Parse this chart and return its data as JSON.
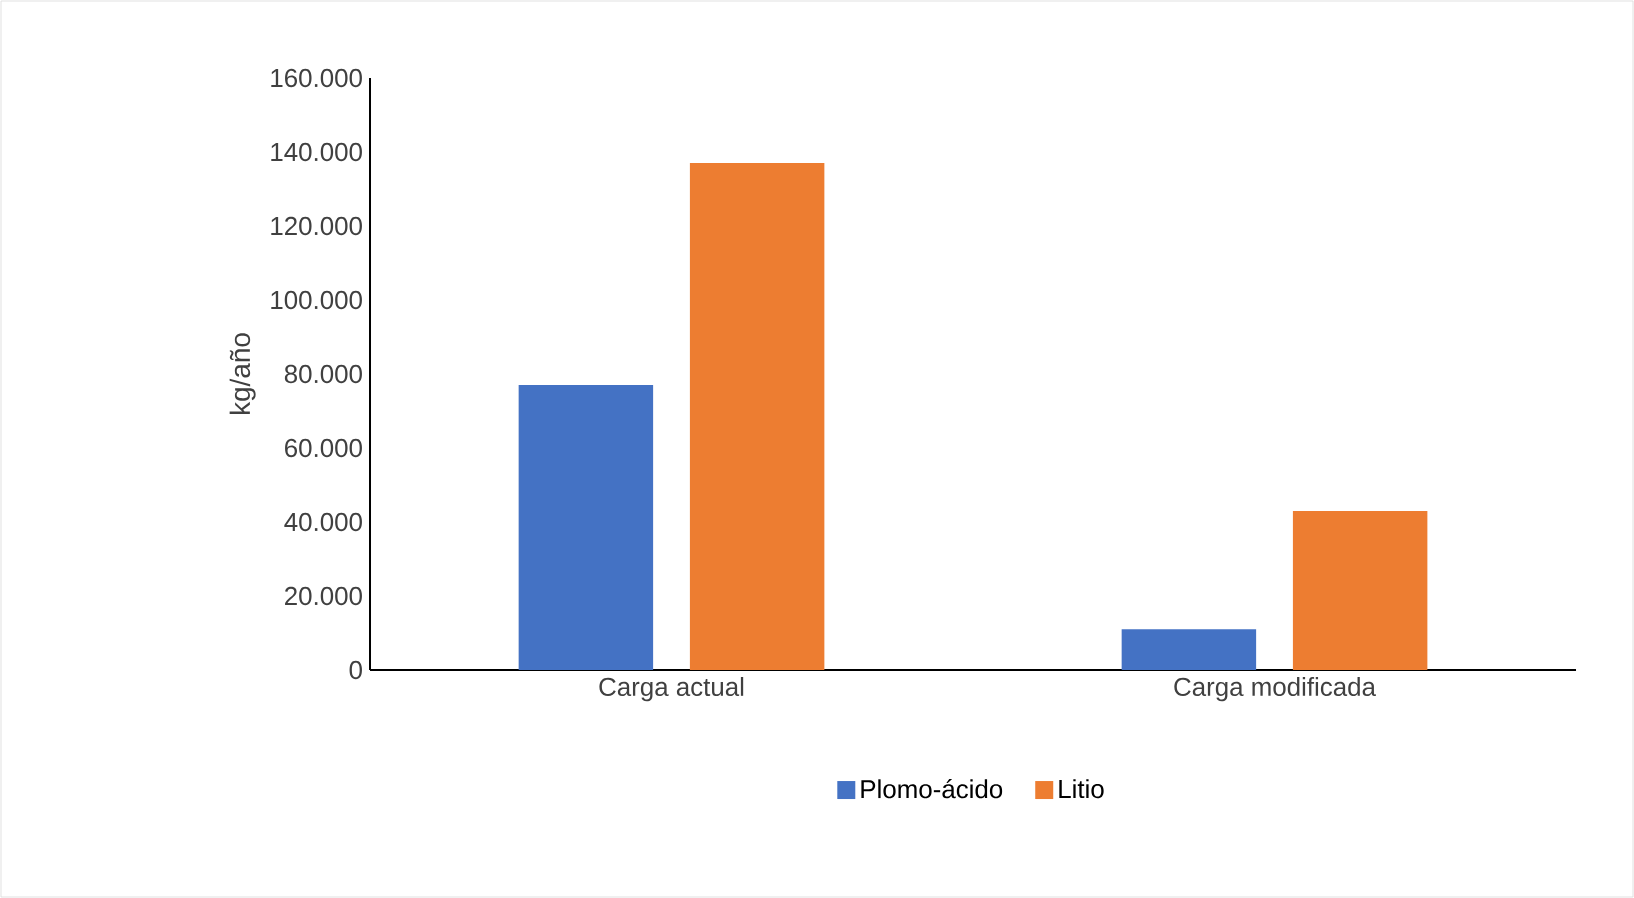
{
  "chart_data": {
    "type": "bar",
    "ylabel": "kg/año",
    "categories": [
      "Carga actual",
      "Carga modificada"
    ],
    "series": [
      {
        "name": "Plomo-ácido",
        "color": "#4472c4",
        "values": [
          77000,
          11000
        ]
      },
      {
        "name": "Litio",
        "color": "#ed7d31",
        "values": [
          137000,
          43000
        ]
      }
    ],
    "ylim": [
      0,
      160000
    ],
    "yticks": [
      {
        "value": 0,
        "label": "0"
      },
      {
        "value": 20000,
        "label": "20.000"
      },
      {
        "value": 40000,
        "label": "40.000"
      },
      {
        "value": 60000,
        "label": "60.000"
      },
      {
        "value": 80000,
        "label": "80.000"
      },
      {
        "value": 100000,
        "label": "100.000"
      },
      {
        "value": 120000,
        "label": "120.000"
      },
      {
        "value": 140000,
        "label": "140.000"
      },
      {
        "value": 160000,
        "label": "160.000"
      }
    ],
    "grid": false,
    "legend": "bottom"
  }
}
